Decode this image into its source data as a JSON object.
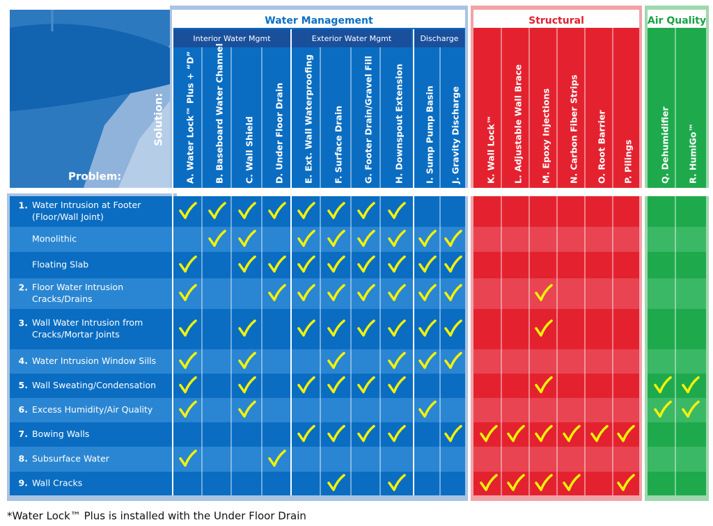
{
  "header": {
    "solution_label": "Solution:",
    "problem_label": "Problem:"
  },
  "groups": [
    {
      "title": "Water Management"
    },
    {
      "title": "Structural"
    },
    {
      "title": "Air Quality"
    }
  ],
  "subgroups": [
    {
      "title": "Interior Water Mgmt"
    },
    {
      "title": "Exterior Water Mgmt"
    },
    {
      "title": "Discharge"
    }
  ],
  "columns": [
    "A. Water Lock™ Plus + “D”",
    "B. Baseboard Water Channel",
    "C. Wall Shield",
    "D. Under Floor Drain",
    "E. Ext. Wall Waterproofing",
    "F. Surface Drain",
    "G. Footer Drain/Gravel Fill",
    "H. Downspout Extension",
    "I. Sump Pump Basin",
    "J. Gravity Discharge",
    "K. Wall Lock™",
    "L. Adjustable Wall Brace",
    "M. Epoxy Injections",
    "N. Carbon Fiber Strips",
    "O. Root Barrier",
    "P. Pilings",
    "Q. Dehumidifier",
    "R. HumiGo™"
  ],
  "rows": [
    {
      "number": "1.",
      "lines": [
        "Water Intrusion at Footer",
        "(Floor/Wall Joint)"
      ],
      "checks": [
        true,
        true,
        true,
        true,
        true,
        true,
        true,
        true,
        false,
        false,
        false,
        false,
        false,
        false,
        false,
        false,
        false,
        false
      ]
    },
    {
      "lines": [
        "Monolithic"
      ],
      "checks": [
        false,
        true,
        true,
        false,
        true,
        true,
        true,
        true,
        true,
        true,
        false,
        false,
        false,
        false,
        false,
        false,
        false,
        false
      ]
    },
    {
      "lines": [
        "Floating Slab"
      ],
      "checks": [
        true,
        false,
        true,
        true,
        true,
        true,
        true,
        true,
        true,
        true,
        false,
        false,
        false,
        false,
        false,
        false,
        false,
        false
      ]
    },
    {
      "number": "2.",
      "lines": [
        "Floor Water Intrusion",
        "Cracks/Drains"
      ],
      "checks": [
        true,
        false,
        false,
        true,
        true,
        true,
        true,
        true,
        true,
        true,
        false,
        false,
        true,
        false,
        false,
        false,
        false,
        false
      ]
    },
    {
      "number": "3.",
      "lines": [
        "Wall Water Intrusion from",
        "Cracks/Mortar Joints"
      ],
      "checks": [
        true,
        false,
        true,
        false,
        true,
        true,
        true,
        true,
        true,
        true,
        false,
        false,
        true,
        false,
        false,
        false,
        false,
        false
      ]
    },
    {
      "number": "4.",
      "lines": [
        "Water Intrusion Window Sills"
      ],
      "checks": [
        true,
        false,
        true,
        false,
        false,
        true,
        false,
        true,
        true,
        true,
        false,
        false,
        false,
        false,
        false,
        false,
        false,
        false
      ]
    },
    {
      "number": "5.",
      "lines": [
        "Wall Sweating/Condensation"
      ],
      "checks": [
        true,
        false,
        true,
        false,
        true,
        true,
        true,
        true,
        false,
        false,
        false,
        false,
        true,
        false,
        false,
        false,
        true,
        true
      ]
    },
    {
      "number": "6.",
      "lines": [
        "Excess Humidity/Air Quality"
      ],
      "checks": [
        true,
        false,
        true,
        false,
        false,
        false,
        false,
        false,
        true,
        false,
        false,
        false,
        false,
        false,
        false,
        false,
        true,
        true
      ]
    },
    {
      "number": "7.",
      "lines": [
        "Bowing Walls"
      ],
      "checks": [
        false,
        false,
        false,
        false,
        true,
        true,
        true,
        true,
        false,
        true,
        true,
        true,
        true,
        true,
        true,
        true,
        false,
        false
      ]
    },
    {
      "number": "8.",
      "lines": [
        "Subsurface Water"
      ],
      "checks": [
        true,
        false,
        false,
        true,
        false,
        false,
        false,
        false,
        false,
        false,
        false,
        false,
        false,
        false,
        false,
        false,
        false,
        false
      ]
    },
    {
      "number": "9.",
      "lines": [
        "Wall Cracks"
      ],
      "checks": [
        false,
        false,
        false,
        false,
        false,
        true,
        false,
        true,
        false,
        false,
        true,
        true,
        true,
        true,
        false,
        true,
        false,
        false
      ]
    }
  ],
  "footnote": "*Water Lock™ Plus is installed with the Under Floor Drain"
}
